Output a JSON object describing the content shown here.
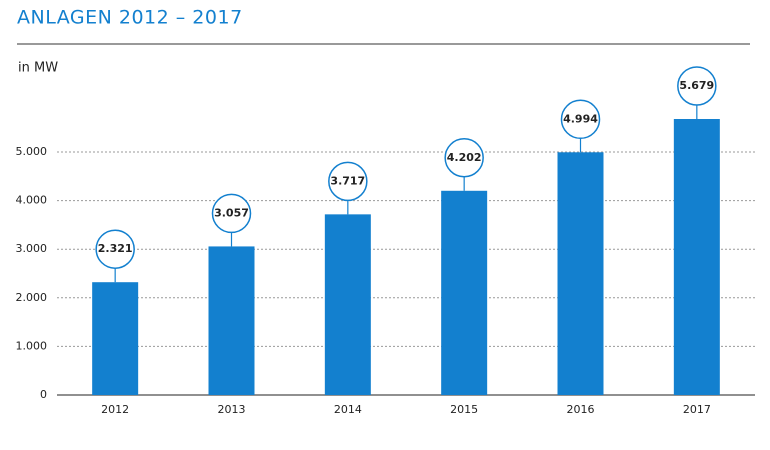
{
  "chart_data": {
    "type": "bar",
    "title": "ANLAGEN 2012 – 2017",
    "y_label": "in MW",
    "categories": [
      "2012",
      "2013",
      "2014",
      "2015",
      "2016",
      "2017"
    ],
    "values": [
      2321,
      3057,
      3717,
      4202,
      4994,
      5679
    ],
    "value_labels": [
      "2.321",
      "3.057",
      "3.717",
      "4.202",
      "4.994",
      "5.679"
    ],
    "color": "#1380cf",
    "ylim": [
      0,
      6000
    ],
    "yticks": [
      0,
      {
        "value": 1000,
        "label": "1.000"
      },
      {
        "value": 2000,
        "label": "2.000"
      },
      {
        "value": 3000,
        "label": "3.000"
      },
      {
        "value": 4000,
        "label": "4.000"
      },
      {
        "value": 5000,
        "label": "5.000"
      }
    ],
    "grid": true
  }
}
